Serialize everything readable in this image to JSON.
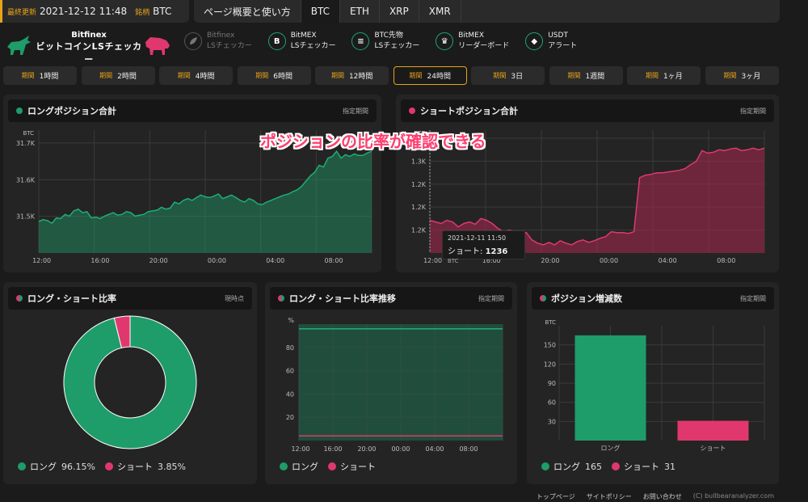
{
  "header": {
    "updated_label": "最終更新",
    "updated_value": "2021-12-12 11:48",
    "symbol_label": "銘柄",
    "symbol_value": "BTC",
    "tabs": [
      "ページ概要と使い方",
      "BTC",
      "ETH",
      "XRP",
      "XMR"
    ],
    "active_tab": "BTC"
  },
  "logo": {
    "line1": "Bitfinex",
    "line2": "ビットコインLSチェッカー"
  },
  "links": [
    {
      "icon": "bitfinex-icon",
      "line1": "Bitfinex",
      "line2": "LSチェッカー",
      "muted": true
    },
    {
      "icon": "bitmex-icon",
      "glyph": "B",
      "line1": "BitMEX",
      "line2": "LSチェッカー",
      "muted": false
    },
    {
      "icon": "btc-futures-icon",
      "glyph": "≡",
      "line1": "BTC先物",
      "line2": "LSチェッカー",
      "muted": false
    },
    {
      "icon": "trophy-icon",
      "glyph": "♛",
      "line1": "BitMEX",
      "line2": "リーダーボード",
      "muted": false
    },
    {
      "icon": "usdt-icon",
      "glyph": "◆",
      "line1": "USDT",
      "line2": "アラート",
      "muted": false
    }
  ],
  "periods": {
    "label": "期間",
    "items": [
      "1時間",
      "2時間",
      "4時間",
      "6時間",
      "12時間",
      "24時間",
      "3日",
      "1週間",
      "1ヶ月",
      "3ヶ月"
    ],
    "active": "24時間"
  },
  "colors": {
    "long": "#1e9c6a",
    "short": "#e0386e",
    "accent": "#e8a317"
  },
  "overlay_text": "ポジションの比率が確認できる",
  "panels": {
    "long_total": {
      "title": "ロングポジション合計",
      "right": "指定期間"
    },
    "short_total": {
      "title": "ショートポジション合計",
      "right": "指定期間"
    },
    "ratio": {
      "title": "ロング・ショート比率",
      "right": "現時点"
    },
    "ratio_trend": {
      "title": "ロング・ショート比率推移",
      "right": "指定期間"
    },
    "change": {
      "title": "ポジション増減数",
      "right": "指定期間"
    }
  },
  "tooltip": {
    "time": "2021-12-11 11:50",
    "label": "ショート:",
    "value": "1236",
    "unit": "BTC"
  },
  "legend": {
    "long": "ロング",
    "short": "ショート",
    "ratio_long": "96.15%",
    "ratio_short": "3.85%",
    "change_long": "165",
    "change_short": "31"
  },
  "chart_data": [
    {
      "type": "area",
      "unit": "BTC",
      "yticks": [
        "31.5K",
        "31.6K",
        "31.7K"
      ],
      "xticks": [
        "12:00",
        "16:00",
        "20:00",
        "00:00",
        "04:00",
        "08:00"
      ],
      "ylim": [
        31430,
        31780
      ],
      "values": [
        31520,
        31525,
        31522,
        31515,
        31530,
        31528,
        31540,
        31535,
        31550,
        31555,
        31545,
        31548,
        31530,
        31532,
        31528,
        31535,
        31540,
        31545,
        31538,
        31540,
        31548,
        31545,
        31535,
        31538,
        31540,
        31548,
        31550,
        31552,
        31560,
        31555,
        31558,
        31575,
        31570,
        31580,
        31585,
        31580,
        31588,
        31595,
        31590,
        31588,
        31592,
        31598,
        31585,
        31590,
        31595,
        31588,
        31580,
        31575,
        31585,
        31580,
        31570,
        31568,
        31575,
        31580,
        31585,
        31590,
        31595,
        31598,
        31605,
        31610,
        31620,
        31635,
        31650,
        31660,
        31680,
        31675,
        31700,
        31705,
        31720,
        31700,
        31710,
        31705,
        31712,
        31708,
        31708,
        31715,
        31720
      ]
    },
    {
      "type": "area",
      "unit": "BTC",
      "yticks": [
        "1.2K",
        "1.2K",
        "1.2K",
        "1.3K",
        "1.3K"
      ],
      "xticks": [
        "12:00",
        "16:00",
        "20:00",
        "00:00",
        "04:00",
        "08:00"
      ],
      "ylim": [
        1200,
        1350
      ],
      "values": [
        1240,
        1238,
        1236,
        1240,
        1238,
        1232,
        1236,
        1238,
        1235,
        1242,
        1240,
        1236,
        1230,
        1226,
        1228,
        1226,
        1224,
        1225,
        1216,
        1212,
        1210,
        1213,
        1210,
        1215,
        1212,
        1210,
        1214,
        1216,
        1213,
        1215,
        1218,
        1220,
        1226,
        1225,
        1225,
        1224,
        1226,
        1292,
        1295,
        1296,
        1298,
        1298,
        1299,
        1300,
        1301,
        1303,
        1308,
        1312,
        1325,
        1322,
        1323,
        1326,
        1325,
        1327,
        1328,
        1325,
        1326,
        1328,
        1326,
        1328
      ]
    },
    {
      "type": "pie",
      "categories": [
        "ロング",
        "ショート"
      ],
      "values": [
        96.15,
        3.85
      ]
    },
    {
      "type": "area",
      "ylabel": "%",
      "yticks": [
        "20",
        "40",
        "60",
        "80"
      ],
      "xticks": [
        "12:00",
        "16:00",
        "20:00",
        "00:00",
        "04:00",
        "08:00"
      ],
      "ylim": [
        0,
        100
      ],
      "series": [
        {
          "values": [
            96,
            96,
            96,
            96,
            96,
            96,
            96,
            96
          ]
        },
        {
          "values": [
            4,
            4,
            4,
            4,
            4,
            4,
            4,
            4
          ]
        }
      ]
    },
    {
      "type": "bar",
      "unit": "BTC",
      "categories": [
        "ロング",
        "ショート"
      ],
      "values": [
        165,
        31
      ],
      "yticks": [
        "30",
        "60",
        "90",
        "120",
        "150"
      ],
      "ylim": [
        0,
        180
      ]
    }
  ],
  "footer": {
    "links": [
      "トップページ",
      "サイトポリシー",
      "お問い合わせ"
    ],
    "copyright": "(C) bullbearanalyzer.com"
  }
}
